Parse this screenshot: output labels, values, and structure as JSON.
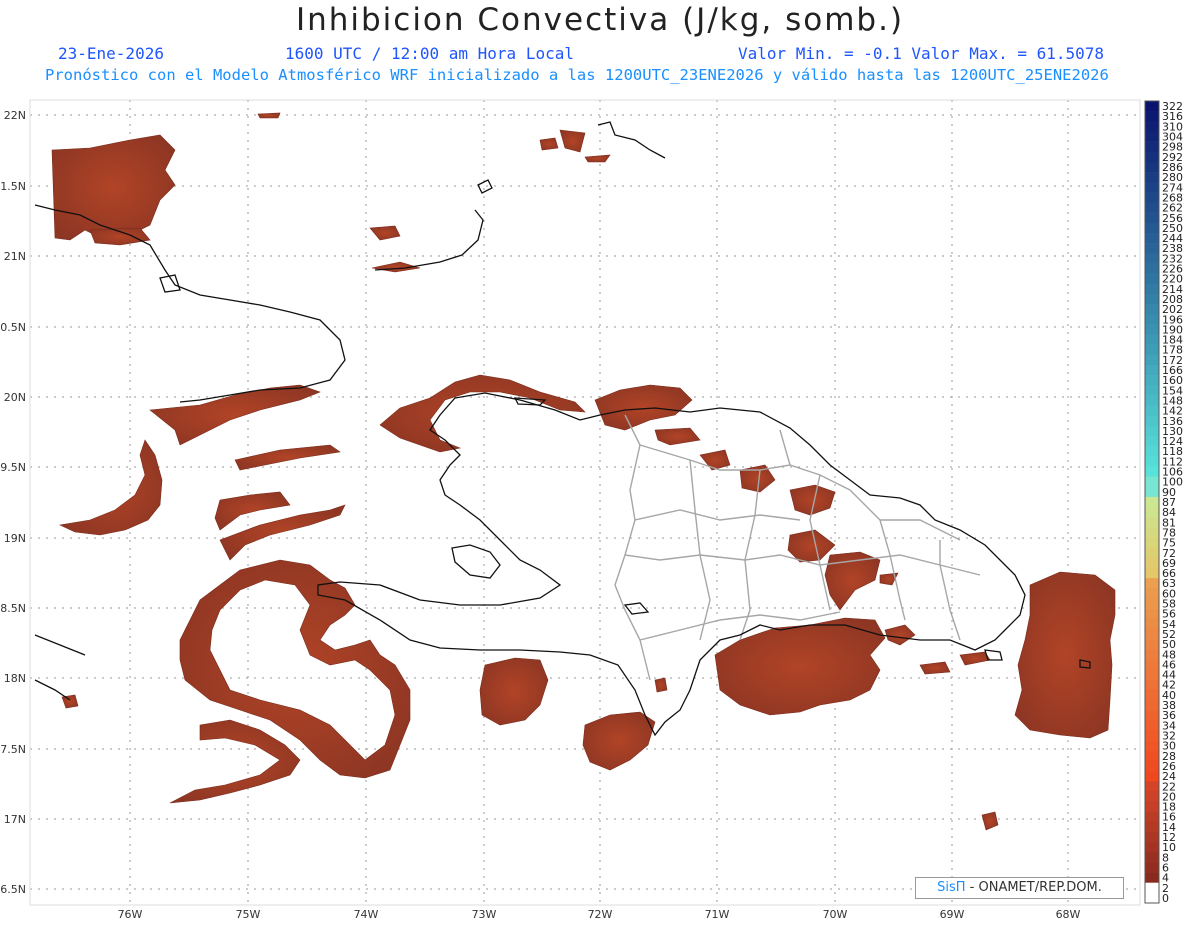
{
  "header": {
    "title": "Inhibicion Convectiva (J/kg, somb.)",
    "date": "23-Ene-2026",
    "time": "1600 UTC / 12:00 am Hora Local",
    "min_max": "Valor Min. = -0.1  Valor Max. = 61.5078",
    "description": "Pronóstico con el Modelo Atmosférico WRF inicializado a las 1200UTC_23ENE2026 y válido hasta las  1200UTC_25ENE2026"
  },
  "axes": {
    "lat_labels": [
      "22N",
      "1.5N",
      "21N",
      "0.5N",
      "20N",
      "9.5N",
      "19N",
      "8.5N",
      "18N",
      "7.5N",
      "17N",
      "6.5N"
    ],
    "lon_labels": [
      "76W",
      "75W",
      "74W",
      "73W",
      "72W",
      "71W",
      "70W",
      "69W",
      "68W"
    ]
  },
  "colorbar": {
    "labels": [
      "322",
      "316",
      "310",
      "304",
      "298",
      "292",
      "286",
      "280",
      "274",
      "268",
      "262",
      "256",
      "250",
      "244",
      "238",
      "232",
      "226",
      "220",
      "214",
      "208",
      "202",
      "196",
      "190",
      "184",
      "178",
      "172",
      "166",
      "160",
      "154",
      "148",
      "142",
      "136",
      "130",
      "124",
      "118",
      "112",
      "106",
      "100",
      "90",
      "87",
      "84",
      "81",
      "78",
      "75",
      "72",
      "69",
      "66",
      "63",
      "60",
      "58",
      "56",
      "54",
      "52",
      "50",
      "48",
      "46",
      "44",
      "42",
      "40",
      "38",
      "36",
      "34",
      "32",
      "30",
      "28",
      "26",
      "24",
      "22",
      "20",
      "18",
      "16",
      "14",
      "12",
      "10",
      "8",
      "6",
      "4",
      "2",
      "0"
    ]
  },
  "credit": {
    "brand": "SisΠ",
    "org": " - ONAMET/REP.DOM."
  },
  "colors": {
    "cin_fill": "#8e3624",
    "cin_accent": "#c94a22",
    "coast": "#111111",
    "borders": "#a6a6a6",
    "grid": "#9a9a9a"
  }
}
